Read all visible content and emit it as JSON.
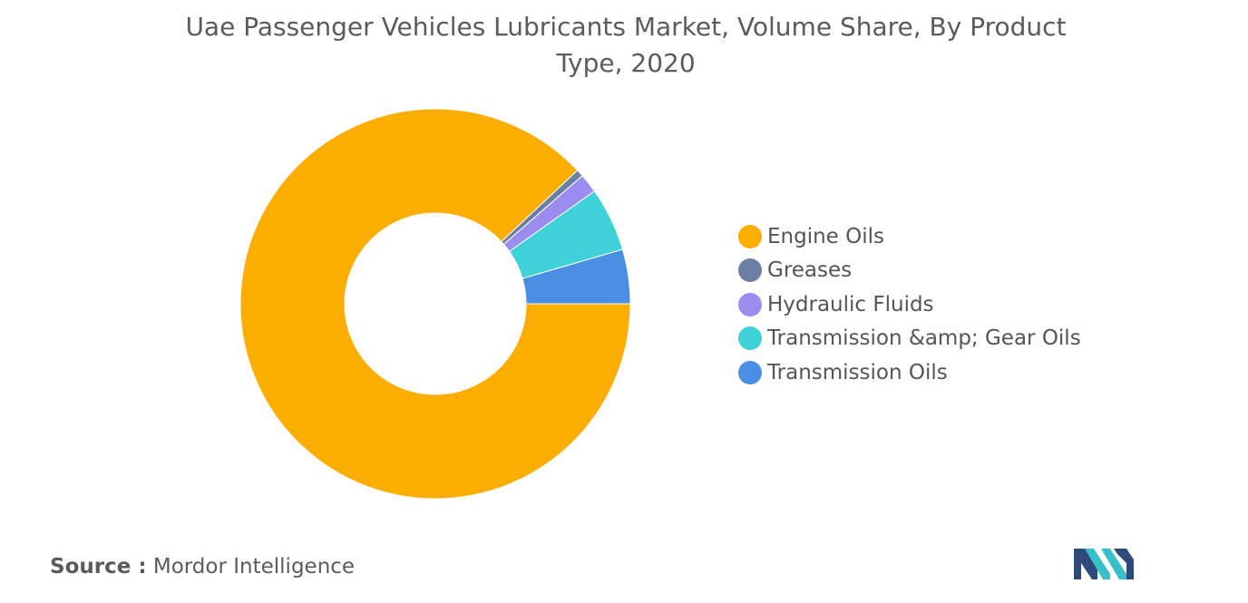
{
  "chart_data": {
    "type": "pie",
    "title": "Uae Passenger Vehicles Lubricants Market, Volume Share, By Product Type, 2020",
    "donut": true,
    "categories": [
      "Engine Oils",
      "Greases",
      "Hydraulic Fluids",
      "Transmission &amp; Gear Oils",
      "Transmission Oils"
    ],
    "values": [
      88.0,
      0.6,
      1.6,
      5.3,
      4.5
    ],
    "colors": [
      "#FBAD00",
      "#6A7FA3",
      "#9B8CF0",
      "#3FD1D8",
      "#4A8FE3"
    ],
    "legend_position": "right"
  },
  "source": {
    "label": "Source :",
    "text": "Mordor Intelligence"
  },
  "logo": {
    "icon": "mordor-intelligence-logo-icon",
    "colors": [
      "#2E4A78",
      "#39BFC8"
    ]
  }
}
